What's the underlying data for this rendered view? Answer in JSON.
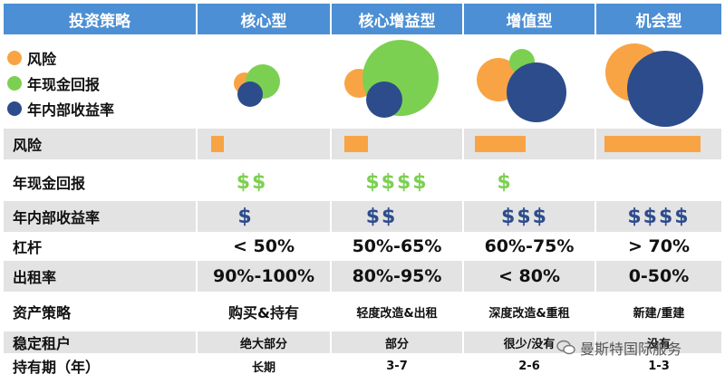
{
  "header": {
    "col0": "投资策略",
    "col1": "核心型",
    "col2": "核心增益型",
    "col3": "增值型",
    "col4": "机会型"
  },
  "legend": {
    "risk": "风险",
    "cash": "年现金回报",
    "irr": "年内部收益率"
  },
  "colors": {
    "header": "#4c8fd4",
    "risk": "#f8a444",
    "cash": "#7cd051",
    "irr": "#2d4c8c",
    "band": "#e3e3e3"
  },
  "bubbles": [
    {
      "strategy": "核心型",
      "risk": 1,
      "cash": 2,
      "irr": 1
    },
    {
      "strategy": "核心增益型",
      "risk": 2,
      "cash": 4,
      "irr": 2
    },
    {
      "strategy": "增值型",
      "risk": 3,
      "cash": 1,
      "irr": 3
    },
    {
      "strategy": "机会型",
      "risk": 4,
      "cash": 0,
      "irr": 4
    }
  ],
  "rows": {
    "risk": {
      "label": "风险",
      "levels": [
        1,
        2,
        3,
        4
      ]
    },
    "cash": {
      "label": "年现金回报",
      "values": [
        "$$",
        "$$$$",
        "$",
        ""
      ]
    },
    "irr": {
      "label": "年内部收益率",
      "values": [
        "$",
        "$$",
        "$$$",
        "$$$$"
      ]
    },
    "leverage": {
      "label": "杠杆",
      "values": [
        "< 50%",
        "50%-65%",
        "60%-75%",
        "> 70%"
      ]
    },
    "occupancy": {
      "label": "出租率",
      "values": [
        "90%-100%",
        "80%-95%",
        "< 80%",
        "0-50%"
      ]
    },
    "asset": {
      "label": "资产策略",
      "values": [
        "购买&持有",
        "轻度改造&出租",
        "深度改造&重租",
        "新建/重建"
      ]
    },
    "tenant": {
      "label": "稳定租户",
      "values": [
        "绝大部分",
        "部分",
        "很少/没有",
        "没有"
      ]
    },
    "hold": {
      "label": "持有期（年）",
      "values": [
        "长期",
        "3-7",
        "2-6",
        "1-3"
      ]
    }
  },
  "watermark": "曼斯特国际服务"
}
